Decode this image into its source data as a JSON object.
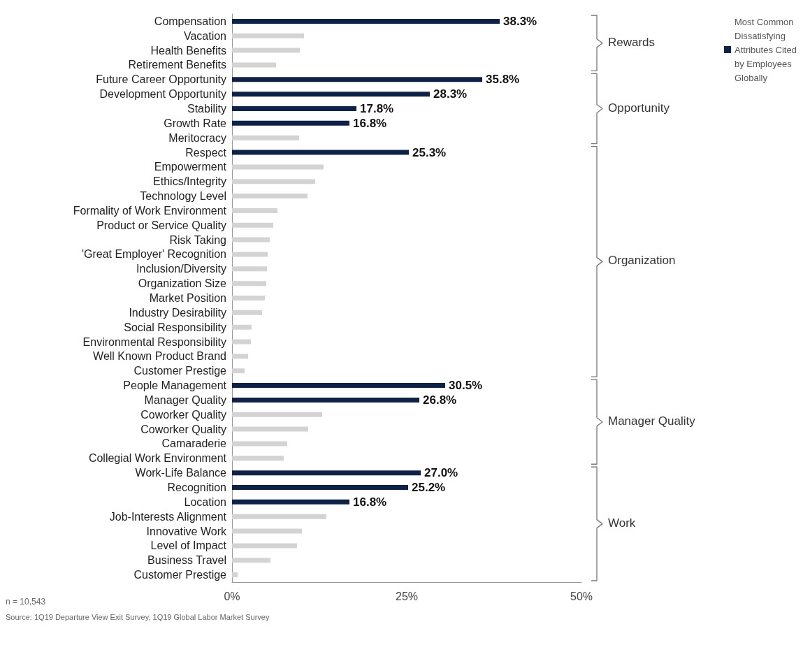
{
  "chart_data": {
    "type": "bar",
    "orientation": "horizontal",
    "stacked": true,
    "categories": [
      "Compensation",
      "Vacation",
      "Health Benefits",
      "Retirement Benefits",
      "Future Career Opportunity",
      "Development Opportunity",
      "Stability",
      "Growth Rate",
      "Meritocracy",
      "Respect",
      "Empowerment",
      "Ethics/Integrity",
      "Technology Level",
      "Formality of Work Environment",
      "Product or Service Quality",
      "Risk Taking",
      "'Great Employer' Recognition",
      "Inclusion/Diversity",
      "Organization Size",
      "Market Position",
      "Industry Desirability",
      "Social Responsibility",
      "Environmental Responsibility",
      "Well Known Product Brand",
      "Customer Prestige",
      "People Management",
      "Manager Quality",
      "Coworker Quality",
      "Coworker Quality",
      "Camaraderie",
      "Collegial Work Environment",
      "Work-Life Balance",
      "Recognition",
      "Location",
      "Job-Interests Alignment",
      "Innovative Work",
      "Level of Impact",
      "Business Travel",
      "Customer Prestige"
    ],
    "series": [
      {
        "name": "Most Common Dissatisfying Attributes Cited by Employees Globally",
        "color": "#0e2146",
        "values": [
          38.3,
          null,
          null,
          null,
          35.8,
          28.3,
          17.8,
          16.8,
          null,
          25.3,
          null,
          null,
          null,
          null,
          null,
          null,
          null,
          null,
          null,
          null,
          null,
          null,
          null,
          null,
          null,
          30.5,
          26.8,
          null,
          null,
          null,
          null,
          27.0,
          25.2,
          16.8,
          null,
          null,
          null,
          null,
          null
        ],
        "value_labels": [
          "38.3%",
          null,
          null,
          null,
          "35.8%",
          "28.3%",
          "17.8%",
          "16.8%",
          null,
          "25.3%",
          null,
          null,
          null,
          null,
          null,
          null,
          null,
          null,
          null,
          null,
          null,
          null,
          null,
          null,
          null,
          "30.5%",
          "26.8%",
          null,
          null,
          null,
          null,
          "27.0%",
          "25.2%",
          "16.8%",
          null,
          null,
          null,
          null,
          null
        ]
      },
      {
        "color": "#d3d3d3",
        "values": [
          null,
          10.3,
          9.7,
          6.3,
          null,
          null,
          null,
          null,
          9.6,
          null,
          13.1,
          11.9,
          10.8,
          6.5,
          5.9,
          5.4,
          5.1,
          5.0,
          4.9,
          4.7,
          4.3,
          2.8,
          2.7,
          2.3,
          1.8,
          null,
          null,
          12.9,
          10.9,
          7.9,
          7.4,
          null,
          null,
          null,
          13.5,
          10.0,
          9.3,
          5.5,
          0.8
        ]
      }
    ],
    "xlim": [
      0,
      50
    ],
    "xticks": [
      {
        "value": 0,
        "label": "0%"
      },
      {
        "value": 25,
        "label": "25%"
      },
      {
        "value": 50,
        "label": "50%"
      }
    ],
    "grid": false,
    "legend": "top right",
    "annotations": [
      "Rewards",
      "Opportunity",
      "Organization",
      "Manager Quality",
      "Work",
      "n = 10,543",
      "Source: 1Q19 Departure View Exit Survey, 1Q19 Global Labor Market Survey"
    ]
  }
}
